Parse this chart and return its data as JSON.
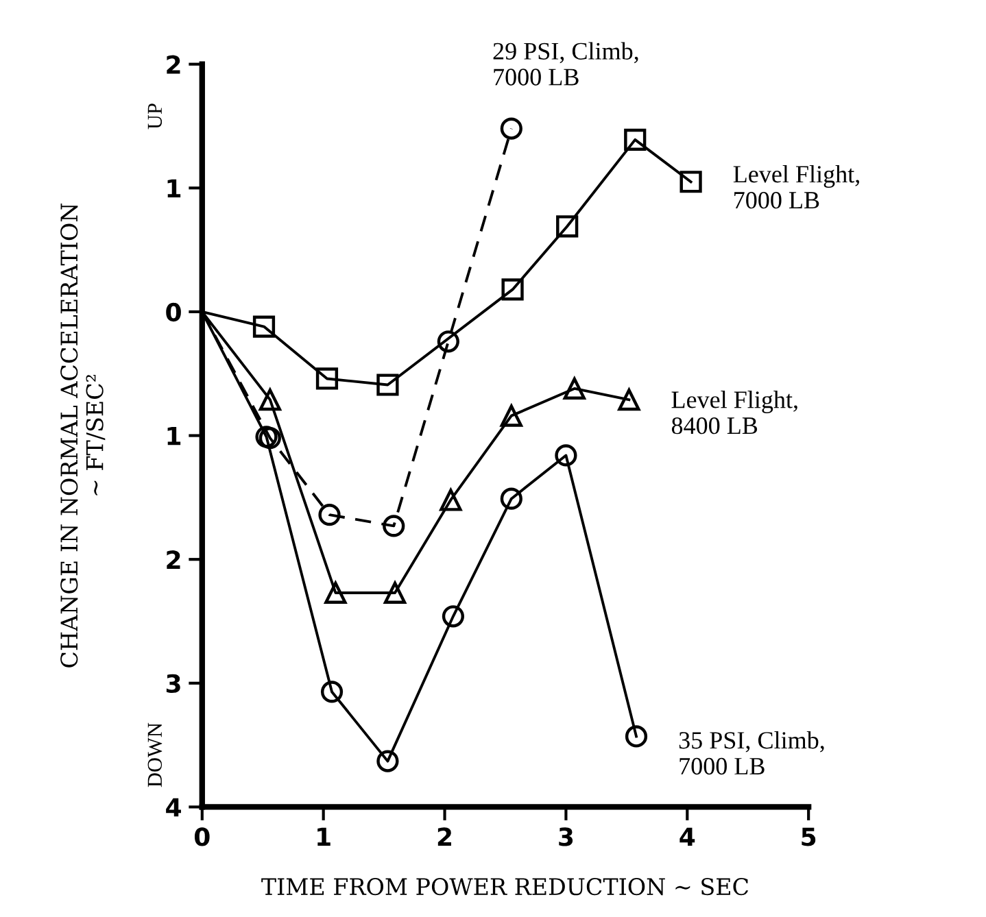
{
  "chart_data": {
    "type": "line",
    "xlabel": "TIME FROM POWER REDUCTION ∼ SEC",
    "ylabel": "CHANGE IN NORMAL ACCELERATION\n∼ FT/SEC²",
    "annotations": [
      "UP",
      "DOWN"
    ],
    "xlim": [
      0,
      5
    ],
    "ylim": [
      -4,
      2
    ],
    "xticks": [
      0,
      1,
      2,
      3,
      4,
      5
    ],
    "yticks": [
      {
        "value": -4,
        "label": "4"
      },
      {
        "value": -3,
        "label": "3"
      },
      {
        "value": -2,
        "label": "2"
      },
      {
        "value": -1,
        "label": "1"
      },
      0,
      1,
      2
    ],
    "grid": false,
    "legend": false,
    "series": [
      {
        "name": "29 PSI, Climb,\n7000 LB",
        "color": "#000000",
        "marker": "circle",
        "line_style": "dashed",
        "x": [
          0,
          0.56,
          1.05,
          1.58,
          2.03,
          2.55
        ],
        "values": [
          0,
          -1.02,
          -1.64,
          -1.73,
          -0.24,
          1.48
        ]
      },
      {
        "name": "Level Flight,\n7000 LB",
        "color": "#000000",
        "marker": "square",
        "line_style": "solid",
        "x": [
          0,
          0.51,
          1.03,
          1.53,
          2.56,
          3.01,
          3.57,
          4.03
        ],
        "values": [
          0,
          -0.12,
          -0.54,
          -0.59,
          0.18,
          0.69,
          1.39,
          1.05
        ]
      },
      {
        "name": "Level Flight,\n8400 LB",
        "color": "#000000",
        "marker": "triangle",
        "line_style": "solid",
        "x": [
          0,
          0.56,
          1.1,
          1.59,
          2.05,
          2.55,
          3.07,
          3.52
        ],
        "values": [
          0,
          -0.71,
          -2.27,
          -2.27,
          -1.52,
          -0.84,
          -0.62,
          -0.71
        ]
      },
      {
        "name": "35 PSI, Climb,\n7000 LB",
        "color": "#000000",
        "marker": "circle",
        "line_style": "solid",
        "x": [
          0,
          0.53,
          1.07,
          1.53,
          2.07,
          2.55,
          3.0,
          3.58
        ],
        "values": [
          0,
          -1.01,
          -3.07,
          -3.63,
          -2.46,
          -1.51,
          -1.16,
          -3.43
        ]
      }
    ]
  }
}
